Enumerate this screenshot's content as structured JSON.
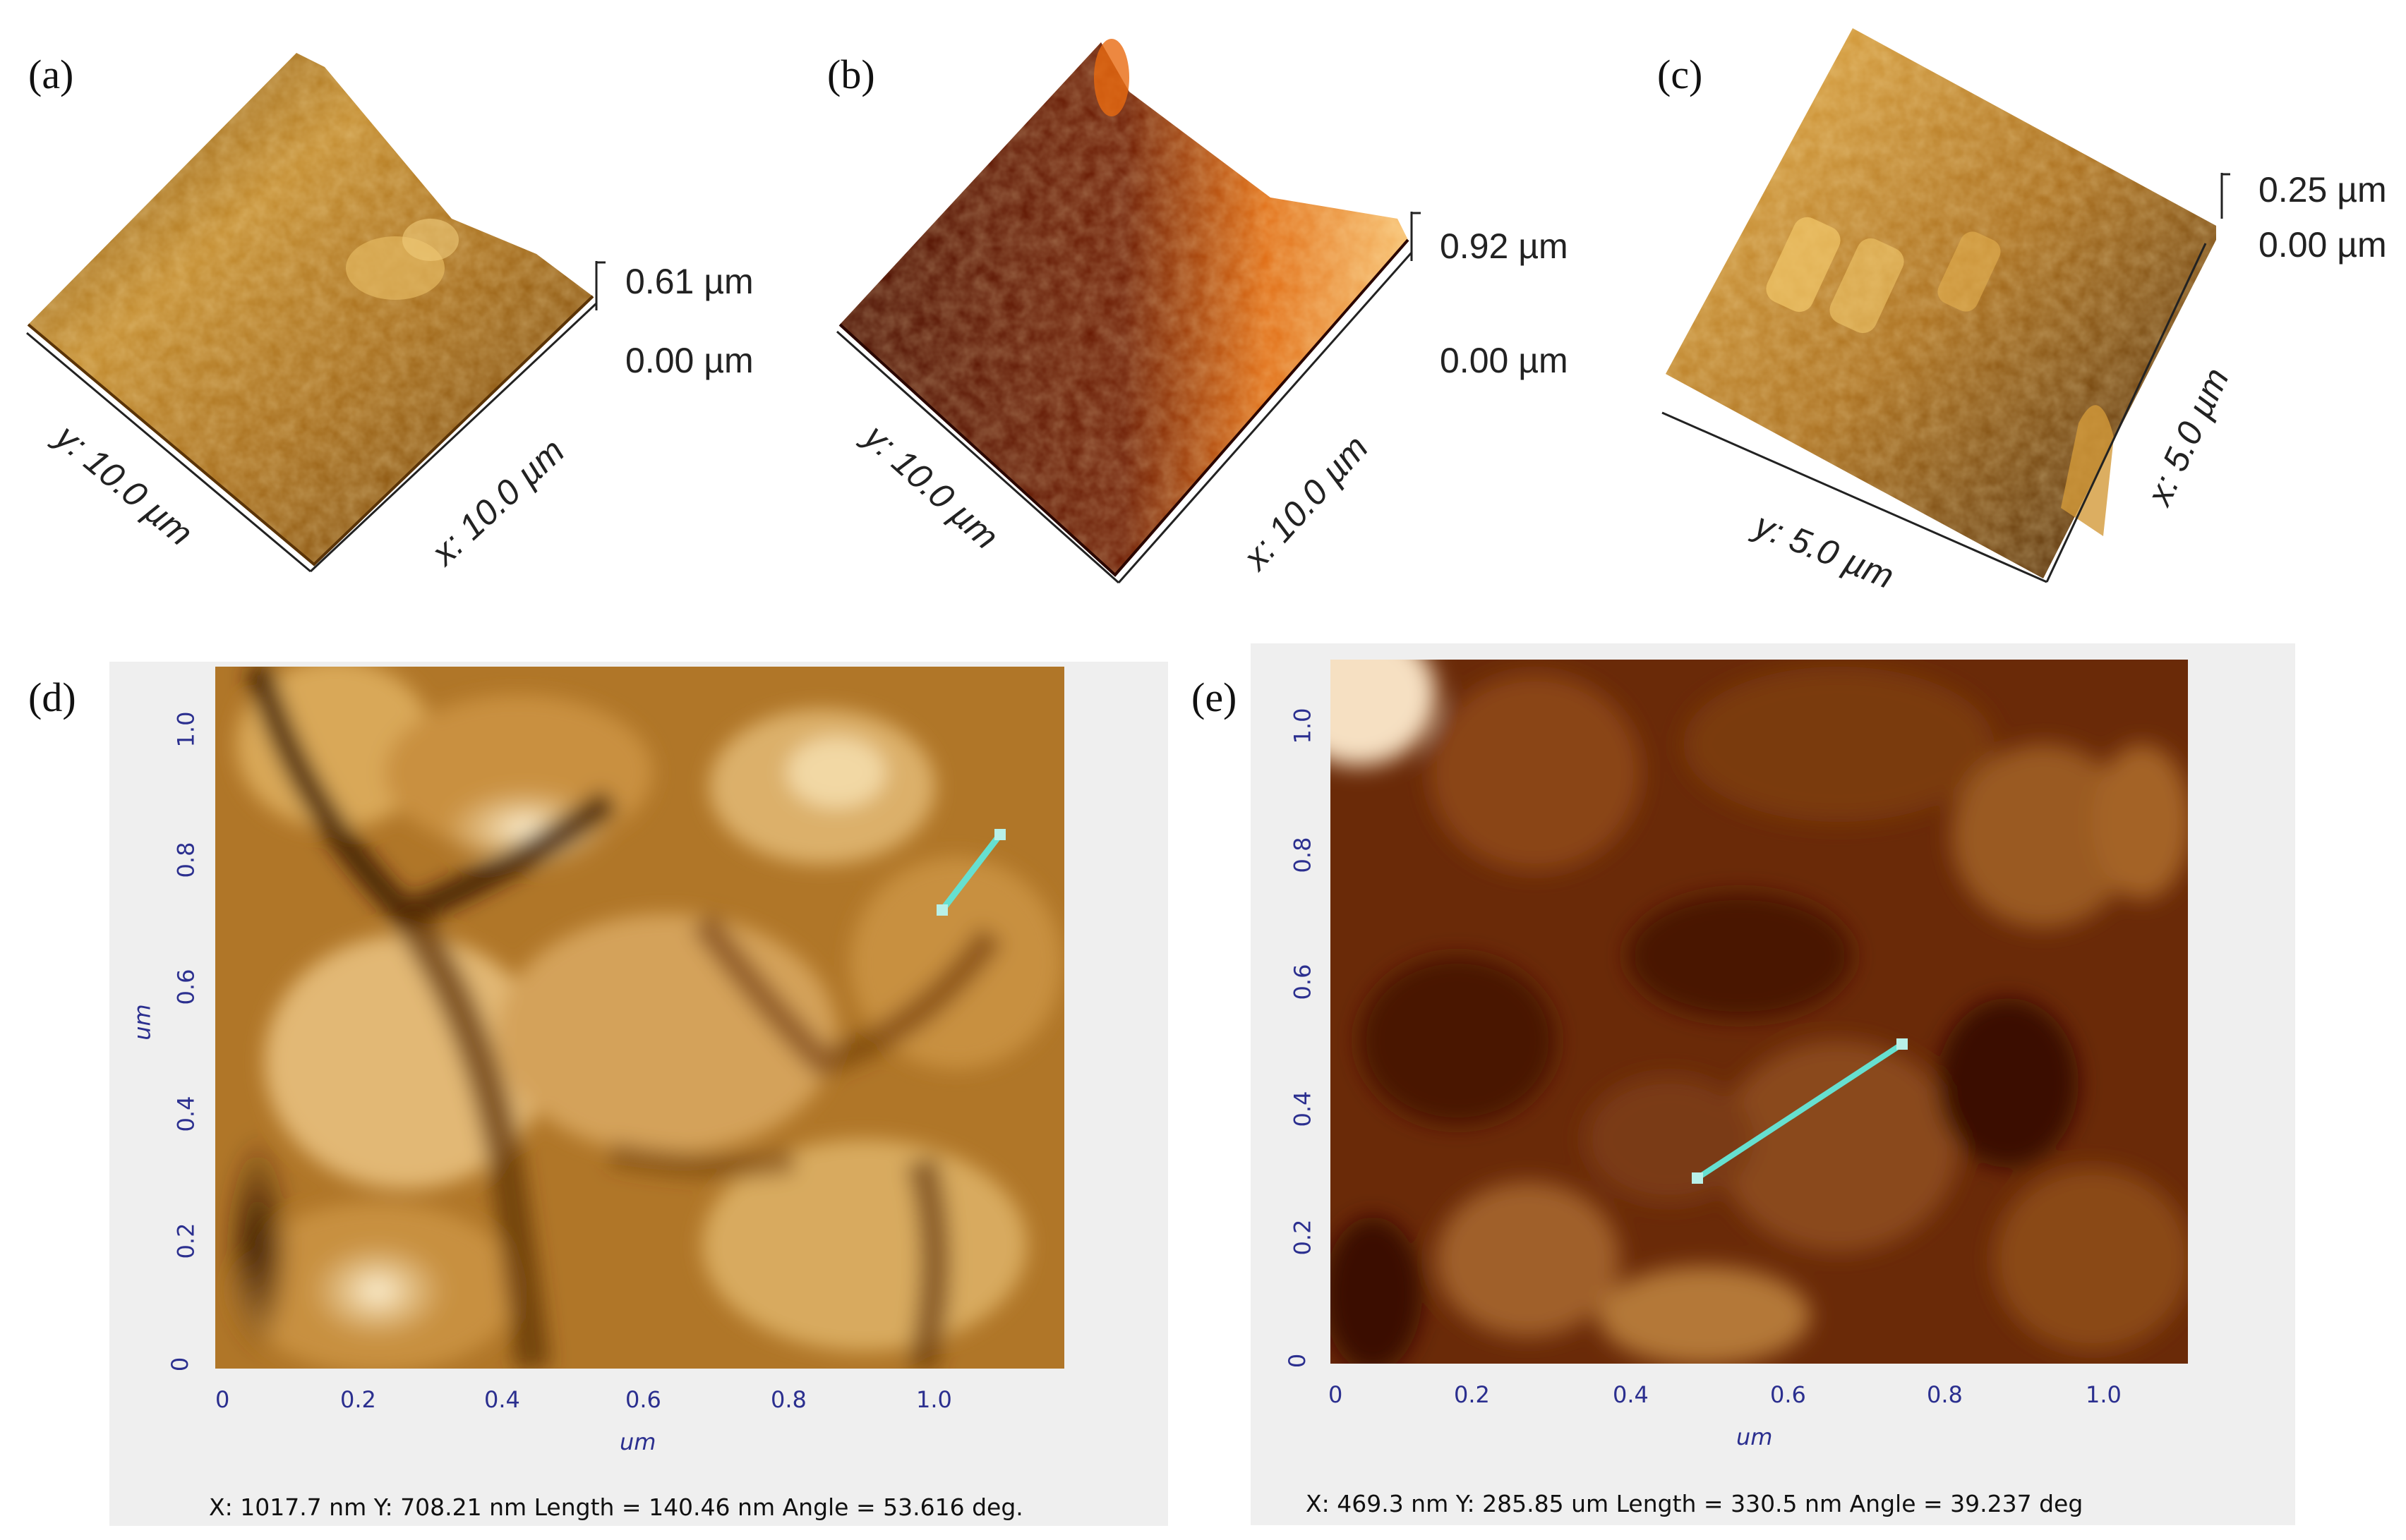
{
  "panels": {
    "a": {
      "label": "(a)",
      "z_max": "0.61 µm",
      "z_min": "0.00 µm",
      "axis_y": "y: 10.0 µm",
      "axis_x": "x: 10.0 µm"
    },
    "b": {
      "label": "(b)",
      "z_max": "0.92 µm",
      "z_min": "0.00 µm",
      "axis_y": "y: 10.0 µm",
      "axis_x": "x: 10.0 µm"
    },
    "c": {
      "label": "(c)",
      "z_max": "0.25 µm",
      "z_min": "0.00 µm",
      "axis_y": "y: 5.0 µm",
      "axis_x": "x: 5.0 µm"
    },
    "d": {
      "label": "(d)",
      "x_ticks": [
        "0",
        "0.2",
        "0.4",
        "0.6",
        "0.8",
        "1.0"
      ],
      "y_ticks": [
        "0",
        "0.2",
        "0.4",
        "0.6",
        "0.8",
        "1.0"
      ],
      "x_unit": "um",
      "y_unit": "um",
      "status": "X: 1017.7 nm Y: 708.21 nm Length =  140.46 nm Angle = 53.616 deg.",
      "measure_color": "#66e0d0"
    },
    "e": {
      "label": "(e)",
      "x_ticks": [
        "0",
        "0.2",
        "0.4",
        "0.6",
        "0.8",
        "1.0"
      ],
      "y_ticks": [
        "0",
        "0.2",
        "0.4",
        "0.6",
        "0.8",
        "1.0"
      ],
      "x_unit": "um",
      "y_unit": "um",
      "status": "X: 469.3 nm Y: 285.85 um Length =  330.5 nm Angle = 39.237 deg",
      "measure_color": "#66e0d0"
    }
  },
  "colors": {
    "gold_light": "#f3d28a",
    "gold_mid": "#b5802a",
    "gold_dark": "#5a3306",
    "brown_dark": "#3a0a00",
    "tick_blue": "#2b2f8f"
  }
}
